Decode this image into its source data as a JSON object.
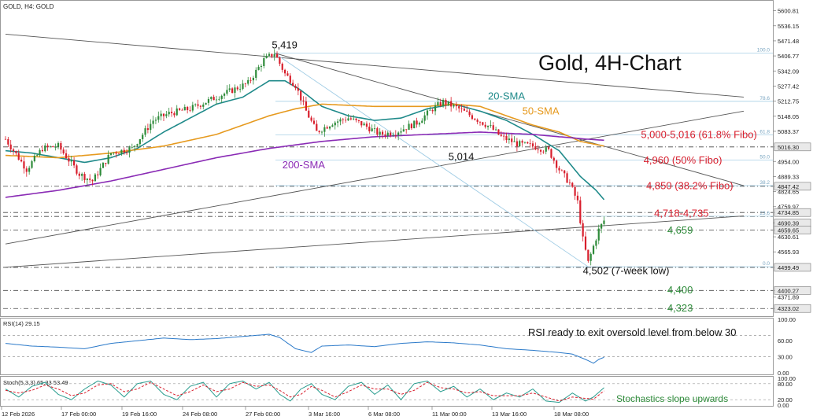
{
  "header": {
    "symbol_label": "GOLD, H4:  GOLD"
  },
  "chart_data": {
    "type": "candlestick",
    "title": "Gold, 4H-Chart",
    "price_axis": {
      "ylim": [
        4290,
        5640
      ],
      "tick_labels": [
        "5600.81",
        "5536.15",
        "5471.48",
        "5406.77",
        "5342.09",
        "5277.42",
        "5212.75",
        "5148.05",
        "5083.37",
        "5016.30",
        "4954.00",
        "4889.33",
        "4847.42",
        "4824.65",
        "4759.97",
        "4734.85",
        "4690.39",
        "4659.65",
        "4630.61",
        "4565.93",
        "4499.49",
        "4400.27",
        "4371.89",
        "4323.02"
      ]
    },
    "x_axis": {
      "tick_labels": [
        "12 Feb 2026",
        "17 Feb 00:00",
        "19 Feb 16:00",
        "24 Feb 08:00",
        "27 Feb 00:00",
        "3 Mar 16:00",
        "6 Mar 08:00",
        "11 Mar 00:00",
        "13 Mar 16:00",
        "18 Mar 08:00"
      ]
    },
    "candles": {
      "anchors": [
        [
          0,
          5050
        ],
        [
          8,
          4920
        ],
        [
          14,
          5010
        ],
        [
          20,
          5020
        ],
        [
          28,
          4900
        ],
        [
          33,
          4870
        ],
        [
          40,
          4990
        ],
        [
          48,
          5010
        ],
        [
          56,
          5130
        ],
        [
          62,
          5160
        ],
        [
          70,
          5180
        ],
        [
          76,
          5210
        ],
        [
          84,
          5250
        ],
        [
          92,
          5290
        ],
        [
          98,
          5390
        ],
        [
          102,
          5419
        ],
        [
          106,
          5330
        ],
        [
          110,
          5280
        ],
        [
          114,
          5170
        ],
        [
          118,
          5080
        ],
        [
          124,
          5120
        ],
        [
          130,
          5140
        ],
        [
          136,
          5110
        ],
        [
          142,
          5070
        ],
        [
          148,
          5080
        ],
        [
          156,
          5120
        ],
        [
          162,
          5180
        ],
        [
          166,
          5210
        ],
        [
          172,
          5180
        ],
        [
          178,
          5140
        ],
        [
          184,
          5100
        ],
        [
          188,
          5060
        ],
        [
          194,
          5030
        ],
        [
          200,
          5020
        ],
        [
          206,
          5000
        ],
        [
          210,
          4920
        ],
        [
          214,
          4860
        ],
        [
          217,
          4780
        ],
        [
          219,
          4620
        ],
        [
          221,
          4520
        ],
        [
          223,
          4590
        ],
        [
          225,
          4660
        ],
        [
          227,
          4700
        ]
      ],
      "up_color": "#2e8b3a",
      "down_color": "#d81e2c"
    },
    "moving_averages": [
      {
        "name": "20-SMA",
        "color": "#1f8a8a",
        "anchors": [
          [
            0,
            5000
          ],
          [
            10,
            4990
          ],
          [
            20,
            4970
          ],
          [
            30,
            4950
          ],
          [
            40,
            4970
          ],
          [
            50,
            5010
          ],
          [
            60,
            5080
          ],
          [
            70,
            5140
          ],
          [
            80,
            5200
          ],
          [
            90,
            5230
          ],
          [
            100,
            5300
          ],
          [
            106,
            5300
          ],
          [
            112,
            5260
          ],
          [
            120,
            5190
          ],
          [
            130,
            5150
          ],
          [
            140,
            5130
          ],
          [
            150,
            5140
          ],
          [
            160,
            5180
          ],
          [
            170,
            5200
          ],
          [
            180,
            5170
          ],
          [
            190,
            5130
          ],
          [
            200,
            5070
          ],
          [
            210,
            5000
          ],
          [
            218,
            4890
          ],
          [
            224,
            4830
          ],
          [
            227,
            4790
          ]
        ]
      },
      {
        "name": "50-SMA",
        "color": "#e69a1f",
        "anchors": [
          [
            0,
            4980
          ],
          [
            20,
            4970
          ],
          [
            40,
            4990
          ],
          [
            60,
            5020
          ],
          [
            80,
            5070
          ],
          [
            100,
            5150
          ],
          [
            110,
            5180
          ],
          [
            120,
            5200
          ],
          [
            140,
            5190
          ],
          [
            160,
            5190
          ],
          [
            170,
            5200
          ],
          [
            180,
            5190
          ],
          [
            190,
            5150
          ],
          [
            200,
            5110
          ],
          [
            210,
            5080
          ],
          [
            218,
            5040
          ],
          [
            227,
            5020
          ]
        ]
      },
      {
        "name": "200-SMA",
        "color": "#8a2bb5",
        "anchors": [
          [
            0,
            4800
          ],
          [
            20,
            4830
          ],
          [
            40,
            4870
          ],
          [
            60,
            4920
          ],
          [
            80,
            4970
          ],
          [
            100,
            5010
          ],
          [
            120,
            5040
          ],
          [
            140,
            5060
          ],
          [
            160,
            5070
          ],
          [
            180,
            5080
          ],
          [
            200,
            5070
          ],
          [
            210,
            5060
          ],
          [
            220,
            5050
          ],
          [
            227,
            5045
          ]
        ]
      }
    ],
    "trendlines": [
      {
        "name": "long-term-falling",
        "color": "#555555",
        "from": [
          0,
          5500
        ],
        "to": [
          280,
          5230
        ]
      },
      {
        "name": "short-term-falling",
        "color": "#555555",
        "from": [
          102,
          5419
        ],
        "to": [
          280,
          4850
        ]
      },
      {
        "name": "rising-upper",
        "color": "#555555",
        "from": [
          0,
          4600
        ],
        "to": [
          280,
          5170
        ]
      },
      {
        "name": "rising-lower",
        "color": "#555555",
        "from": [
          0,
          4500
        ],
        "to": [
          280,
          4720
        ]
      },
      {
        "name": "fib-diagonal",
        "color": "#9ecbe4",
        "from": [
          102,
          5419
        ],
        "to": [
          221,
          4502
        ]
      }
    ],
    "horizontal_levels": [
      {
        "value": 5016.3,
        "style": "dash-dot",
        "color": "#444444"
      },
      {
        "value": 4847.42,
        "style": "dash-dot",
        "color": "#444444"
      },
      {
        "value": 4734.85,
        "style": "dash-dot",
        "color": "#444444"
      },
      {
        "value": 4718.0,
        "style": "dash-dot",
        "color": "#444444"
      },
      {
        "value": 4659.65,
        "style": "dash-dot",
        "color": "#444444"
      },
      {
        "value": 4499.49,
        "style": "dash-dot",
        "color": "#444444"
      },
      {
        "value": 4400.27,
        "style": "dash-dot",
        "color": "#444444"
      },
      {
        "value": 4323.02,
        "style": "dash-dot",
        "color": "#444444"
      }
    ],
    "fibo_levels": [
      {
        "value": 5419.0,
        "label": "100.0"
      },
      {
        "value": 5212.0,
        "label": "78.6"
      },
      {
        "value": 5068.0,
        "label": "61.8"
      },
      {
        "value": 4960.0,
        "label": "50.0"
      },
      {
        "value": 4850.0,
        "label": "38.2"
      },
      {
        "value": 4719.0,
        "label": "23.6"
      },
      {
        "value": 4502.0,
        "label": "0.0"
      }
    ],
    "annotations": [
      {
        "text": "5,419",
        "color": "#111111",
        "price": 5440,
        "bar": 101
      },
      {
        "text": "5,014",
        "color": "#111111",
        "price": 4960,
        "bar": 168
      },
      {
        "text": "4,502 (7-week low)",
        "color": "#111111",
        "price": 4470,
        "bar": 219
      },
      {
        "text": "20-SMA",
        "color": "#1f8a8a",
        "price": 5220,
        "bar": 183
      },
      {
        "text": "50-SMA",
        "color": "#e69a1f",
        "price": 5155,
        "bar": 196
      },
      {
        "text": "200-SMA",
        "color": "#8a2bb5",
        "price": 4925,
        "bar": 105
      },
      {
        "text": "5,000-5,016 (61.8% Fibo)",
        "color": "#d81e2c",
        "price": 5055,
        "bar": 241
      },
      {
        "text": "4,960 (50% Fibo)",
        "color": "#d81e2c",
        "price": 4945,
        "bar": 242
      },
      {
        "text": "4,850 (38.2% Fibo)",
        "color": "#d81e2c",
        "price": 4835,
        "bar": 243
      },
      {
        "text": "4,718-4,735",
        "color": "#d81e2c",
        "price": 4717,
        "bar": 246
      },
      {
        "text": "4,659",
        "color": "#2e8b3a",
        "price": 4645,
        "bar": 251
      },
      {
        "text": "4,400",
        "color": "#2e8b3a",
        "price": 4388,
        "bar": 251
      },
      {
        "text": "4,323",
        "color": "#2e8b3a",
        "price": 4311,
        "bar": 251
      }
    ],
    "rsi": {
      "label": "RSI(14) 29.15",
      "ylim": [
        0,
        100
      ],
      "tick_labels": [
        "100.00",
        "60.00",
        "30.00",
        "0.00"
      ],
      "levels": [
        70,
        30
      ],
      "color": "#2a79c9",
      "anchors": [
        [
          0,
          55
        ],
        [
          10,
          50
        ],
        [
          20,
          48
        ],
        [
          30,
          45
        ],
        [
          40,
          55
        ],
        [
          50,
          60
        ],
        [
          60,
          65
        ],
        [
          70,
          62
        ],
        [
          80,
          64
        ],
        [
          90,
          68
        ],
        [
          100,
          72
        ],
        [
          104,
          66
        ],
        [
          110,
          45
        ],
        [
          116,
          38
        ],
        [
          120,
          50
        ],
        [
          130,
          52
        ],
        [
          140,
          49
        ],
        [
          150,
          55
        ],
        [
          160,
          58
        ],
        [
          170,
          56
        ],
        [
          180,
          52
        ],
        [
          190,
          45
        ],
        [
          200,
          42
        ],
        [
          210,
          38
        ],
        [
          215,
          35
        ],
        [
          220,
          25
        ],
        [
          223,
          18
        ],
        [
          225,
          25
        ],
        [
          227,
          29
        ]
      ],
      "note": "RSI ready to exit oversold level from below 30"
    },
    "stochastic": {
      "label": "Stoch(5,3,3) 65.33 53.49",
      "ylim": [
        0,
        100
      ],
      "tick_labels": [
        "100.00",
        "80.00",
        "20.00",
        "0.00"
      ],
      "levels": [
        80,
        20
      ],
      "main_color": "#2a9d8f",
      "signal_color": "#d81e2c",
      "main_anchors": [
        [
          0,
          60
        ],
        [
          5,
          30
        ],
        [
          10,
          70
        ],
        [
          15,
          85
        ],
        [
          20,
          40
        ],
        [
          25,
          20
        ],
        [
          30,
          60
        ],
        [
          35,
          90
        ],
        [
          40,
          75
        ],
        [
          45,
          30
        ],
        [
          50,
          80
        ],
        [
          55,
          90
        ],
        [
          60,
          40
        ],
        [
          65,
          20
        ],
        [
          70,
          70
        ],
        [
          75,
          85
        ],
        [
          80,
          30
        ],
        [
          85,
          80
        ],
        [
          90,
          90
        ],
        [
          95,
          60
        ],
        [
          100,
          85
        ],
        [
          104,
          40
        ],
        [
          108,
          15
        ],
        [
          112,
          60
        ],
        [
          116,
          80
        ],
        [
          120,
          40
        ],
        [
          125,
          20
        ],
        [
          130,
          70
        ],
        [
          135,
          85
        ],
        [
          140,
          40
        ],
        [
          145,
          75
        ],
        [
          150,
          20
        ],
        [
          155,
          80
        ],
        [
          160,
          90
        ],
        [
          165,
          50
        ],
        [
          170,
          70
        ],
        [
          175,
          30
        ],
        [
          180,
          60
        ],
        [
          185,
          20
        ],
        [
          190,
          45
        ],
        [
          195,
          30
        ],
        [
          200,
          60
        ],
        [
          205,
          15
        ],
        [
          210,
          10
        ],
        [
          215,
          45
        ],
        [
          220,
          15
        ],
        [
          223,
          30
        ],
        [
          227,
          65
        ]
      ],
      "signal_anchors": [
        [
          0,
          55
        ],
        [
          5,
          45
        ],
        [
          10,
          55
        ],
        [
          15,
          75
        ],
        [
          20,
          60
        ],
        [
          25,
          35
        ],
        [
          30,
          45
        ],
        [
          35,
          75
        ],
        [
          40,
          80
        ],
        [
          45,
          50
        ],
        [
          50,
          60
        ],
        [
          55,
          85
        ],
        [
          60,
          60
        ],
        [
          65,
          35
        ],
        [
          70,
          50
        ],
        [
          75,
          75
        ],
        [
          80,
          50
        ],
        [
          85,
          60
        ],
        [
          90,
          85
        ],
        [
          95,
          70
        ],
        [
          100,
          75
        ],
        [
          104,
          55
        ],
        [
          108,
          30
        ],
        [
          112,
          40
        ],
        [
          116,
          70
        ],
        [
          120,
          55
        ],
        [
          125,
          30
        ],
        [
          130,
          50
        ],
        [
          135,
          75
        ],
        [
          140,
          60
        ],
        [
          145,
          60
        ],
        [
          150,
          40
        ],
        [
          155,
          55
        ],
        [
          160,
          85
        ],
        [
          165,
          65
        ],
        [
          170,
          60
        ],
        [
          175,
          45
        ],
        [
          180,
          50
        ],
        [
          185,
          35
        ],
        [
          190,
          35
        ],
        [
          195,
          35
        ],
        [
          200,
          45
        ],
        [
          205,
          30
        ],
        [
          210,
          15
        ],
        [
          215,
          30
        ],
        [
          220,
          25
        ],
        [
          223,
          22
        ],
        [
          227,
          53
        ]
      ],
      "note": "Stochastics slope upwards"
    }
  }
}
